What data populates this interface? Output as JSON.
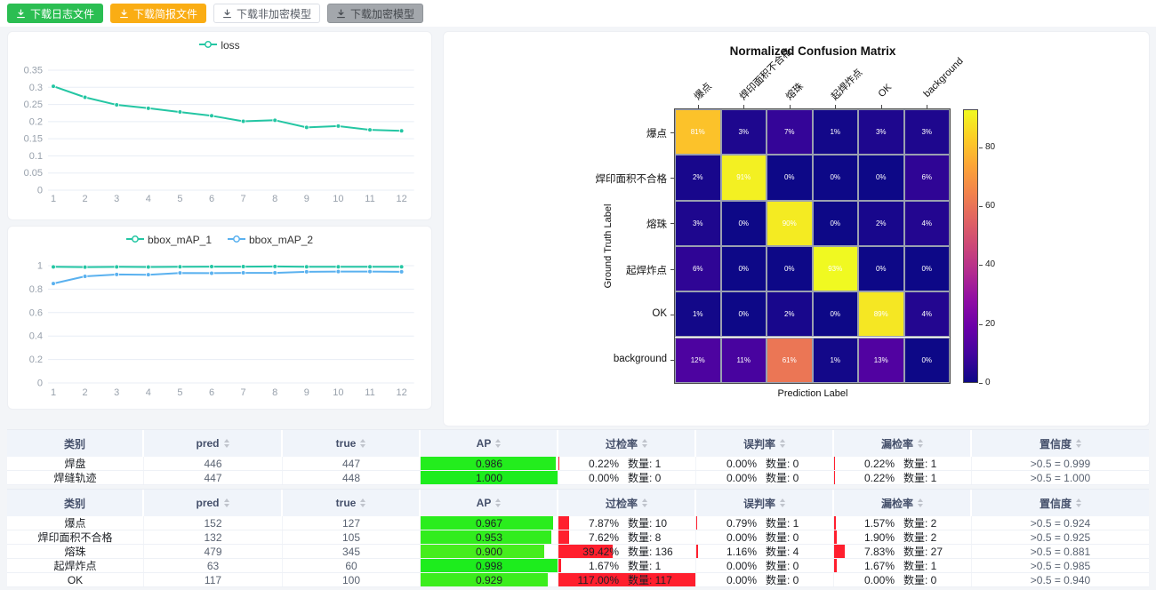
{
  "toolbar": {
    "buttons": [
      {
        "label": "下载日志文件",
        "style": "green"
      },
      {
        "label": "下载简报文件",
        "style": "orange"
      },
      {
        "label": "下载非加密模型",
        "style": "plain"
      },
      {
        "label": "下载加密模型",
        "style": "gray"
      }
    ]
  },
  "colors": {
    "series_teal": "#24c6a3",
    "series_blue": "#5ab1ef",
    "rate_bar_red": "#ff1f2e",
    "button_green": "#2bbe52",
    "button_orange": "#faad14",
    "grid_line": "#e8edf5",
    "axis_text": "#98a1ac"
  },
  "chart_data": [
    {
      "type": "line",
      "x": [
        1,
        2,
        3,
        4,
        5,
        6,
        7,
        8,
        9,
        10,
        11,
        12
      ],
      "series": [
        {
          "name": "loss",
          "color": "#24c6a3",
          "values": [
            0.303,
            0.271,
            0.249,
            0.239,
            0.228,
            0.217,
            0.201,
            0.204,
            0.183,
            0.187,
            0.176,
            0.173
          ]
        }
      ],
      "yticks": [
        0,
        0.05,
        0.1,
        0.15,
        0.2,
        0.25,
        0.3,
        0.35
      ],
      "ylim": [
        0,
        0.35
      ],
      "legend_position": "top",
      "grid": true
    },
    {
      "type": "line",
      "x": [
        1,
        2,
        3,
        4,
        5,
        6,
        7,
        8,
        9,
        10,
        11,
        12
      ],
      "series": [
        {
          "name": "bbox_mAP_1",
          "color": "#24c6a3",
          "values": [
            0.99,
            0.988,
            0.99,
            0.989,
            0.991,
            0.992,
            0.992,
            0.993,
            0.991,
            0.991,
            0.991,
            0.991
          ]
        },
        {
          "name": "bbox_mAP_2",
          "color": "#5ab1ef",
          "values": [
            0.848,
            0.909,
            0.925,
            0.923,
            0.938,
            0.936,
            0.939,
            0.939,
            0.948,
            0.95,
            0.95,
            0.948
          ]
        }
      ],
      "yticks": [
        0,
        0.2,
        0.4,
        0.6,
        0.8,
        1
      ],
      "ylim": [
        0,
        1
      ],
      "legend_position": "top",
      "grid": true
    },
    {
      "type": "heatmap",
      "title": "Normalized Confusion Matrix",
      "xlabel": "Prediction Label",
      "ylabel": "Ground Truth Label",
      "labels": [
        "爆点",
        "焊印面积不合格",
        "熔珠",
        "起焊炸点",
        "OK",
        "background"
      ],
      "values": [
        [
          81,
          3,
          7,
          1,
          3,
          3
        ],
        [
          2,
          91,
          0,
          0,
          0,
          6
        ],
        [
          3,
          0,
          90,
          0,
          2,
          4
        ],
        [
          6,
          0,
          0,
          93,
          0,
          0
        ],
        [
          1,
          0,
          2,
          0,
          89,
          4
        ],
        [
          12,
          11,
          61,
          1,
          13,
          0
        ]
      ],
      "value_suffix": "%",
      "vmax": 93,
      "colorbar_ticks": [
        0,
        20,
        40,
        60,
        80
      ],
      "colormap": "plasma"
    }
  ],
  "tables": [
    {
      "count_label": "数量:",
      "headers": [
        {
          "label": "类别",
          "sortable": false
        },
        {
          "label": "pred",
          "sortable": true
        },
        {
          "label": "true",
          "sortable": true
        },
        {
          "label": "AP",
          "sortable": true
        },
        {
          "label": "过检率",
          "sortable": true
        },
        {
          "label": "误判率",
          "sortable": true
        },
        {
          "label": "漏检率",
          "sortable": true
        },
        {
          "label": "置信度",
          "sortable": true
        }
      ],
      "rows": [
        {
          "category": "焊盘",
          "pred": "446",
          "true": "447",
          "ap": 0.986,
          "over_rate": {
            "pct": 0.22,
            "count": 1
          },
          "misjudge_rate": {
            "pct": 0.0,
            "count": 0
          },
          "miss_rate": {
            "pct": 0.22,
            "count": 1
          },
          "confidence": ">0.5 = 0.999"
        },
        {
          "category": "焊缝轨迹",
          "pred": "447",
          "true": "448",
          "ap": 1.0,
          "over_rate": {
            "pct": 0.0,
            "count": 0
          },
          "misjudge_rate": {
            "pct": 0.0,
            "count": 0
          },
          "miss_rate": {
            "pct": 0.22,
            "count": 1
          },
          "confidence": ">0.5 = 1.000"
        }
      ]
    },
    {
      "count_label": "数量:",
      "headers": [
        {
          "label": "类别",
          "sortable": false
        },
        {
          "label": "pred",
          "sortable": true
        },
        {
          "label": "true",
          "sortable": true
        },
        {
          "label": "AP",
          "sortable": true
        },
        {
          "label": "过检率",
          "sortable": true
        },
        {
          "label": "误判率",
          "sortable": true
        },
        {
          "label": "漏检率",
          "sortable": true
        },
        {
          "label": "置信度",
          "sortable": true
        }
      ],
      "rows": [
        {
          "category": "爆点",
          "pred": "152",
          "true": "127",
          "ap": 0.967,
          "over_rate": {
            "pct": 7.87,
            "count": 10
          },
          "misjudge_rate": {
            "pct": 0.79,
            "count": 1
          },
          "miss_rate": {
            "pct": 1.57,
            "count": 2
          },
          "confidence": ">0.5 = 0.924"
        },
        {
          "category": "焊印面积不合格",
          "pred": "132",
          "true": "105",
          "ap": 0.953,
          "over_rate": {
            "pct": 7.62,
            "count": 8
          },
          "misjudge_rate": {
            "pct": 0.0,
            "count": 0
          },
          "miss_rate": {
            "pct": 1.9,
            "count": 2
          },
          "confidence": ">0.5 = 0.925"
        },
        {
          "category": "熔珠",
          "pred": "479",
          "true": "345",
          "ap": 0.9,
          "over_rate": {
            "pct": 39.42,
            "count": 136
          },
          "misjudge_rate": {
            "pct": 1.16,
            "count": 4
          },
          "miss_rate": {
            "pct": 7.83,
            "count": 27
          },
          "confidence": ">0.5 = 0.881"
        },
        {
          "category": "起焊炸点",
          "pred": "63",
          "true": "60",
          "ap": 0.998,
          "over_rate": {
            "pct": 1.67,
            "count": 1
          },
          "misjudge_rate": {
            "pct": 0.0,
            "count": 0
          },
          "miss_rate": {
            "pct": 1.67,
            "count": 1
          },
          "confidence": ">0.5 = 0.985"
        },
        {
          "category": "OK",
          "pred": "117",
          "true": "100",
          "ap": 0.929,
          "over_rate": {
            "pct": 117.0,
            "count": 117
          },
          "misjudge_rate": {
            "pct": 0.0,
            "count": 0
          },
          "miss_rate": {
            "pct": 0.0,
            "count": 0
          },
          "confidence": ">0.5 = 0.940"
        }
      ]
    }
  ]
}
